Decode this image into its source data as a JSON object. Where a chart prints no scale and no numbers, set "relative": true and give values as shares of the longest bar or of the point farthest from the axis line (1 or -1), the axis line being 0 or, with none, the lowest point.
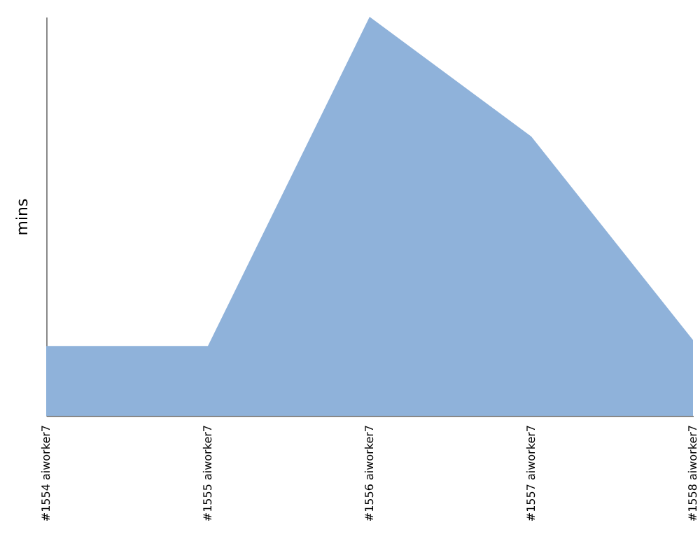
{
  "chart_data": {
    "type": "area",
    "ylabel": "mins",
    "relative": true,
    "categories": [
      "#1554 aiworker7",
      "#1555 aiworker7",
      "#1556 aiworker7",
      "#1557 aiworker7",
      "#1558 aiworker7"
    ],
    "series": [
      {
        "color": "#8fb2da",
        "values": [
          0.175,
          0.175,
          1,
          0.7,
          0.19
        ]
      }
    ],
    "grid": false
  }
}
